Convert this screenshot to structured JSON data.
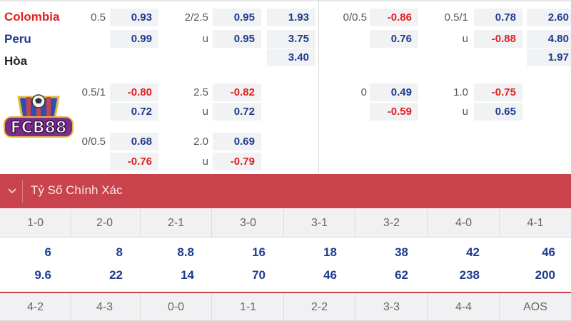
{
  "teams": {
    "home": "Colombia",
    "away": "Peru",
    "draw": "Hòa"
  },
  "left_block": {
    "rows": [
      {
        "hcap": "0.5",
        "v1": "0.93",
        "ou_line": "2/2.5",
        "ou1": "0.95",
        "x12": "1.93"
      },
      {
        "hcap": "",
        "v1": "0.99",
        "ou_line": "u",
        "ou1": "0.95",
        "x12": "3.75"
      },
      {
        "x12": "3.40"
      },
      {
        "hcap": "0.5/1",
        "v1": "-0.80",
        "ou_line": "2.5",
        "ou1": "-0.82"
      },
      {
        "hcap": "",
        "v1": "0.72",
        "ou_line": "u",
        "ou1": "0.72"
      },
      {
        "hcap": "0/0.5",
        "v1": "0.68",
        "ou_line": "2.0",
        "ou1": "0.69"
      },
      {
        "hcap": "",
        "v1": "-0.76",
        "ou_line": "u",
        "ou1": "-0.79"
      }
    ]
  },
  "right_block": {
    "rows": [
      {
        "hcap": "0/0.5",
        "v1": "-0.86",
        "ou_line": "0.5/1",
        "ou1": "0.78",
        "x12": "2.60"
      },
      {
        "hcap": "",
        "v1": "0.76",
        "ou_line": "u",
        "ou1": "-0.88",
        "x12": "4.80"
      },
      {
        "x12": "1.97"
      },
      {
        "hcap": "0",
        "v1": "0.49",
        "ou_line": "1.0",
        "ou1": "-0.75"
      },
      {
        "hcap": "",
        "v1": "-0.59",
        "ou_line": "u",
        "ou1": "0.65"
      }
    ]
  },
  "logo_text": "FCB88",
  "section": {
    "title": "Tỷ Số Chính Xác",
    "toggle_icon": "chevron-down-icon"
  },
  "scores_row1": [
    "1-0",
    "2-0",
    "2-1",
    "3-0",
    "3-1",
    "3-2",
    "4-0",
    "4-1"
  ],
  "odds_top": [
    "6",
    "8",
    "8.8",
    "16",
    "18",
    "38",
    "42",
    "46"
  ],
  "odds_bottom": [
    "9.6",
    "22",
    "14",
    "70",
    "46",
    "62",
    "238",
    "200"
  ],
  "scores_row2": [
    "4-2",
    "4-3",
    "0-0",
    "1-1",
    "2-2",
    "3-3",
    "4-4",
    "AOS"
  ],
  "colors": {
    "positive": "#1f3b8f",
    "negative": "#e02020",
    "section_bar": "#c9434c",
    "cell_bg": "#f1f2f4"
  }
}
